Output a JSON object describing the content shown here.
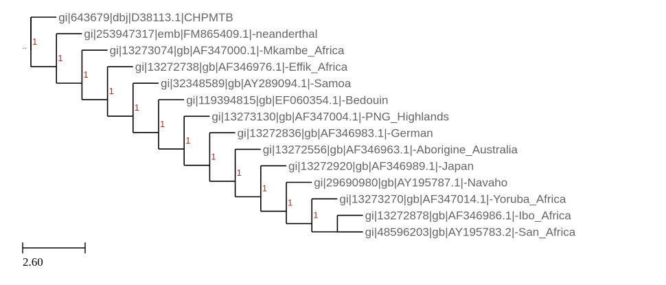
{
  "tree": {
    "colors": {
      "branch": "#000000",
      "leaf_label": "#666666",
      "support": "#a0392b"
    },
    "leaves": [
      "gi|643679|dbj|D38113.1|CHPMTB",
      "gi|253947317|emb|FM865409.1|-neanderthal",
      "gi|13273074|gb|AF347000.1|-Mkambe_Africa",
      "gi|13272738|gb|AF346976.1|-Effik_Africa",
      "gi|32348589|gb|AY289094.1|-Samoa",
      "gi|119394815|gb|EF060354.1|-Bedouin",
      "gi|13273130|gb|AF347004.1|-PNG_Highlands",
      "gi|13272836|gb|AF346983.1|-German",
      "gi|13272556|gb|AF346963.1|-Aborigine_Australia",
      "gi|13272920|gb|AF346989.1|-Japan",
      "gi|29690980|gb|AY195787.1|-Navaho",
      "gi|13273270|gb|AF347014.1|-Yoruba_Africa",
      "gi|13272878|gb|AF346986.1|-Ibo_Africa",
      "gi|48596203|gb|AY195783.2|-San_Africa"
    ],
    "support_values": [
      "1",
      "1",
      "1",
      "1",
      "1",
      "1",
      "1",
      "1",
      "1",
      "1",
      "1",
      "1"
    ],
    "root_marker": "..",
    "scale_bar_label": "2.60"
  }
}
